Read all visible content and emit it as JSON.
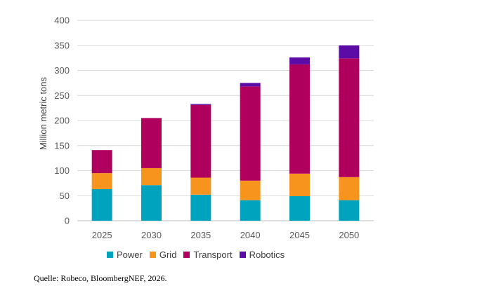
{
  "chart_data": {
    "type": "bar",
    "stacked": true,
    "title": "",
    "xlabel": "",
    "ylabel": "Million metric tons",
    "ylim": [
      0,
      400
    ],
    "yticks": [
      0,
      50,
      100,
      150,
      200,
      250,
      300,
      350,
      400
    ],
    "grid": true,
    "legend_position": "bottom",
    "categories": [
      "2025",
      "2030",
      "2035",
      "2040",
      "2045",
      "2050"
    ],
    "series": [
      {
        "name": "Power",
        "color": "#00A3BE",
        "values": [
          63,
          71,
          52,
          41,
          49,
          41
        ]
      },
      {
        "name": "Grid",
        "color": "#F7941D",
        "values": [
          32,
          34,
          34,
          39,
          45,
          46
        ]
      },
      {
        "name": "Transport",
        "color": "#B0005E",
        "values": [
          46,
          100,
          145,
          188,
          218,
          237
        ]
      },
      {
        "name": "Robotics",
        "color": "#5B0BA6",
        "values": [
          0,
          0,
          2,
          7,
          14,
          26
        ]
      }
    ]
  },
  "source": "Quelle: Robeco, BloombergNEF, 2026."
}
